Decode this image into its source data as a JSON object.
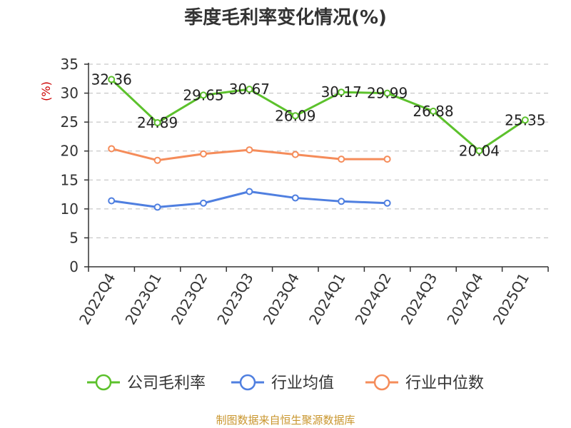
{
  "chart_data": {
    "type": "line",
    "title": "季度毛利率变化情况(%)",
    "ylabel": "(%)",
    "xlabel": "",
    "ylim": [
      0,
      35
    ],
    "yticks": [
      0,
      5,
      10,
      15,
      20,
      25,
      30,
      35
    ],
    "grid": true,
    "legend_position": "bottom",
    "categories": [
      "2022Q4",
      "2023Q1",
      "2023Q2",
      "2023Q3",
      "2023Q4",
      "2024Q1",
      "2024Q2",
      "2024Q3",
      "2024Q4",
      "2025Q1"
    ],
    "series": [
      {
        "name": "公司毛利率",
        "color": "#5cc12c",
        "values": [
          32.36,
          24.89,
          29.65,
          30.67,
          26.09,
          30.17,
          29.99,
          26.88,
          20.04,
          25.35
        ],
        "labels": [
          "32.36",
          "24.89",
          "29.65",
          "30.67",
          "26.09",
          "30.17",
          "29.99",
          "26.88",
          "20.04",
          "25.35"
        ],
        "show_labels": true
      },
      {
        "name": "行业均值",
        "color": "#4f7fe0",
        "values": [
          11.4,
          10.3,
          11.0,
          13.0,
          11.9,
          11.3,
          11.0,
          null,
          null,
          null
        ],
        "show_labels": false
      },
      {
        "name": "行业中位数",
        "color": "#f58c5a",
        "values": [
          20.4,
          18.4,
          19.5,
          20.2,
          19.4,
          18.6,
          18.6,
          null,
          null,
          null
        ],
        "show_labels": false
      }
    ]
  },
  "source": "制图数据来自恒生聚源数据库"
}
